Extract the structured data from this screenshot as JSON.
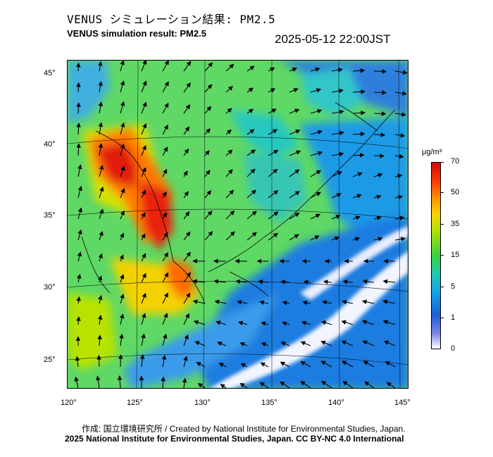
{
  "header": {
    "title_jp": "VENUS シミュレーション結果: PM2.5",
    "title_en": "VENUS simulation result: PM2.5",
    "timestamp": "2025-05-12 22:00JST"
  },
  "map": {
    "lat_ticks": [
      "45°",
      "40°",
      "35°",
      "30°",
      "25°"
    ],
    "lon_ticks": [
      "120°",
      "125°",
      "130°",
      "135°",
      "140°",
      "145°"
    ]
  },
  "colorbar": {
    "unit": "μg/m³",
    "labels": [
      "70",
      "50",
      "35",
      "15",
      "5",
      "1",
      "0"
    ],
    "colors": [
      "#d20c0c",
      "#ff9a00",
      "#f5d400",
      "#39d23f",
      "#1fc8b4",
      "#1e5ed6",
      "#ffffff"
    ]
  },
  "footer": {
    "credit_jp": "作成: 国立環境研究所 / Created by National Institute for Environmental Studies, Japan.",
    "credit_en": "2025 National Institute for Environmental Studies, Japan. CC BY-NC 4.0 International"
  }
}
